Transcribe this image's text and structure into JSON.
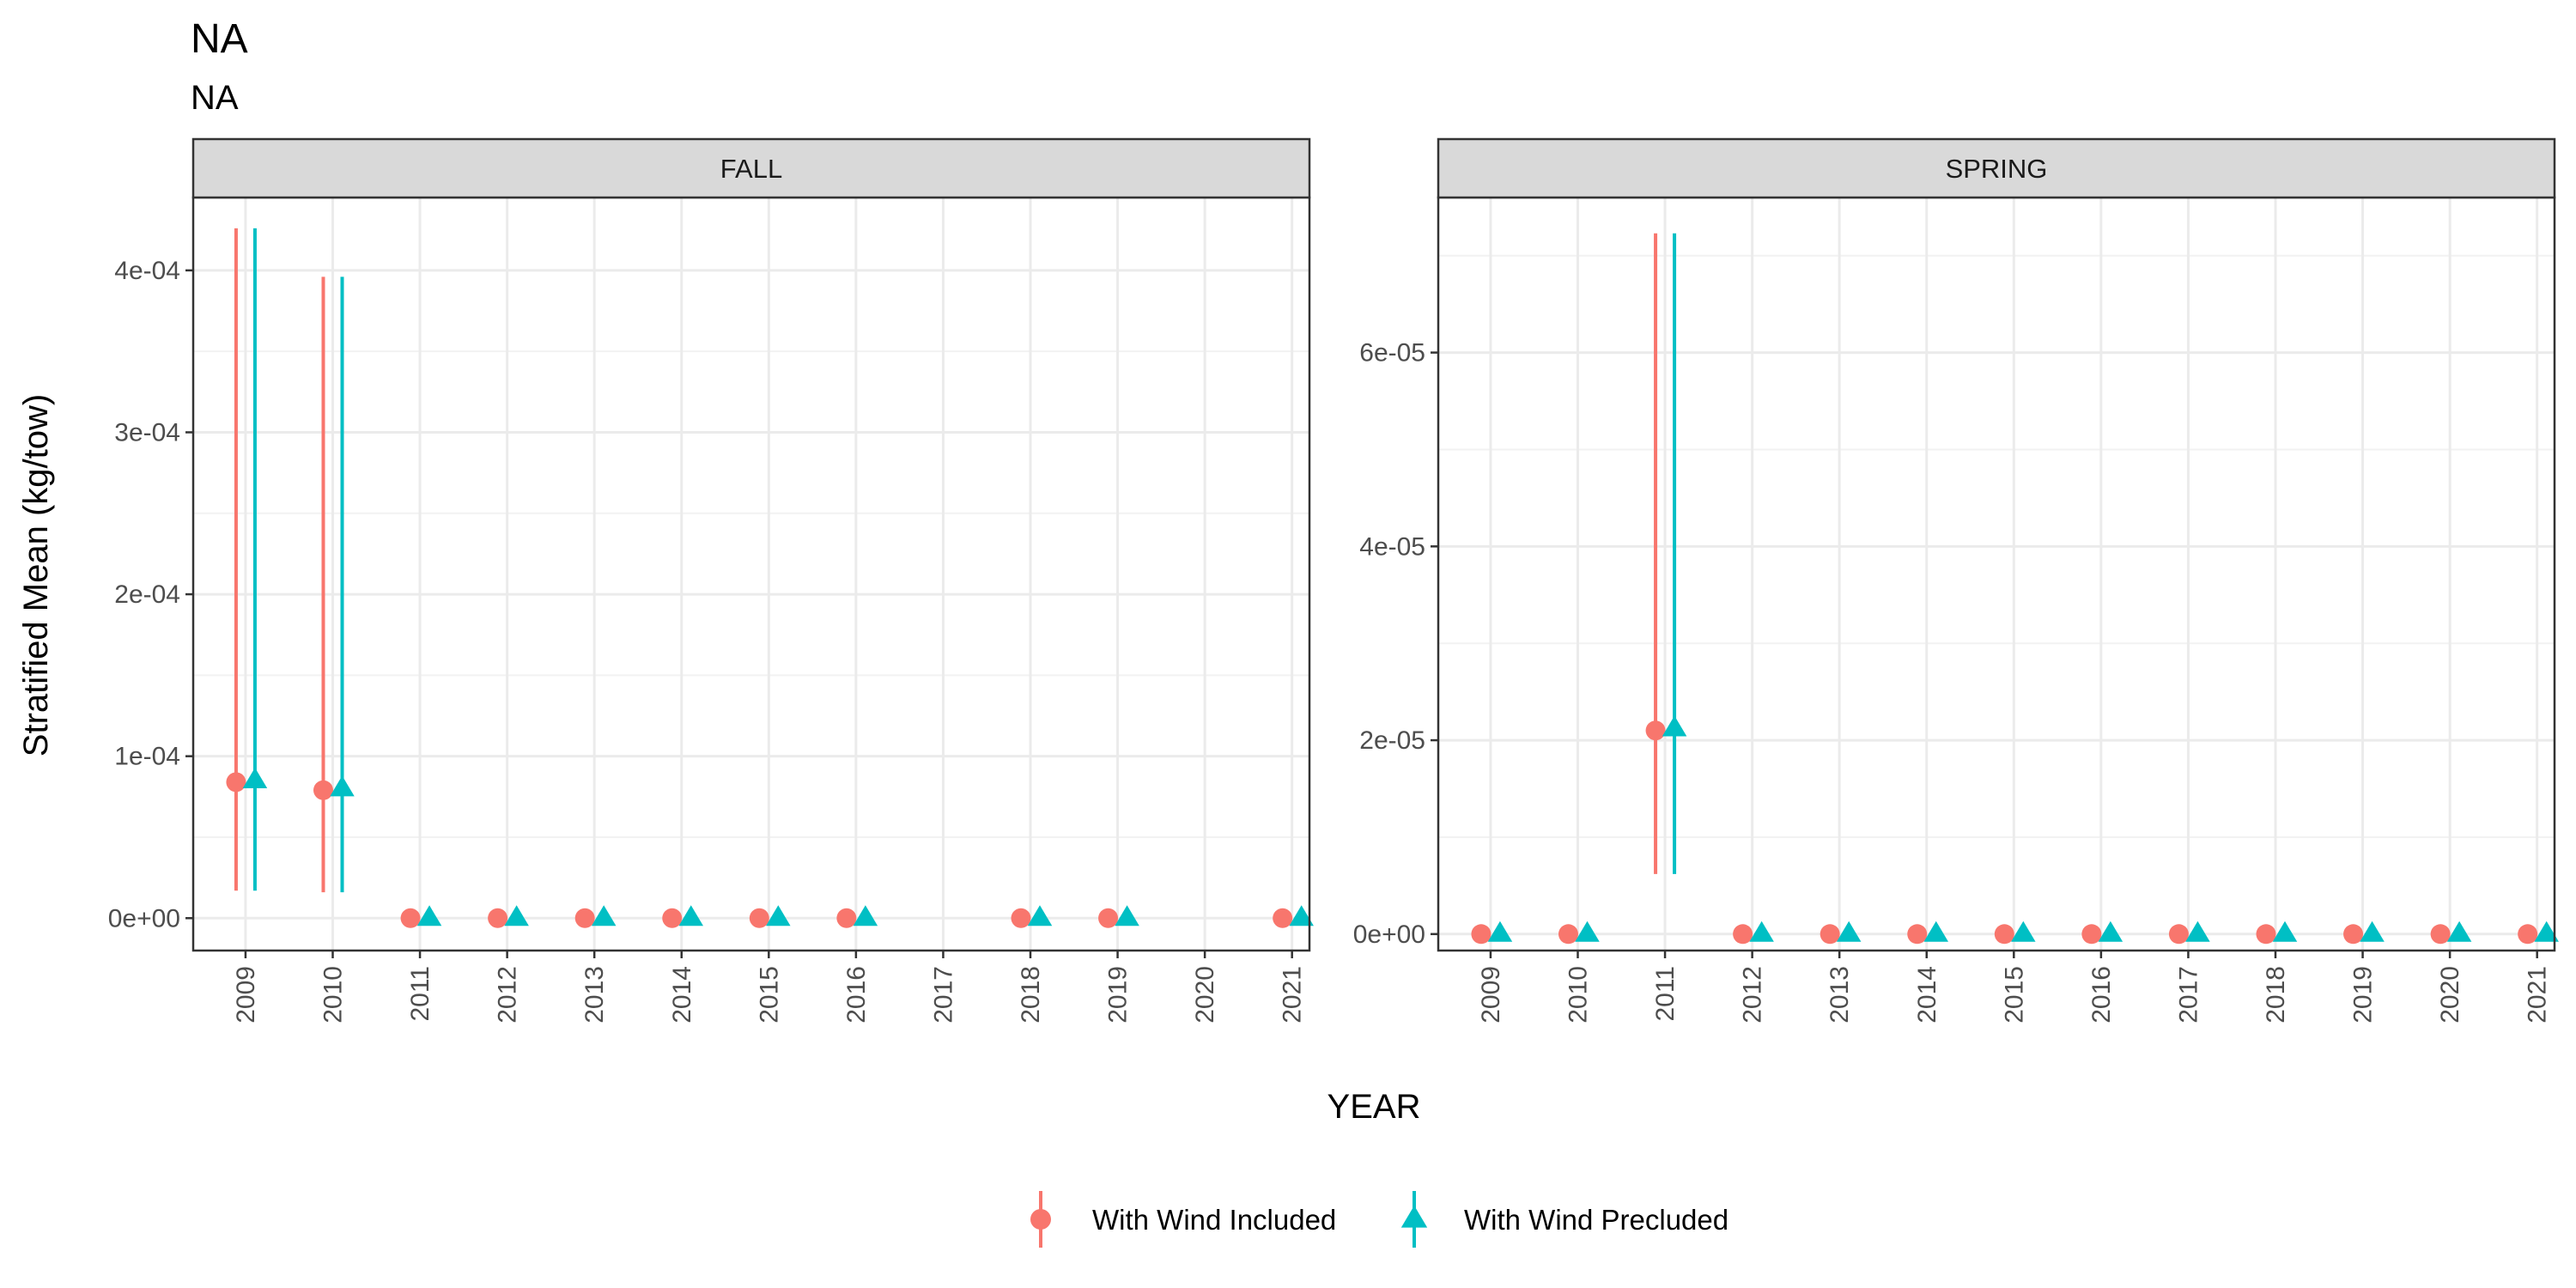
{
  "title": "NA",
  "subtitle": "NA",
  "chart_data": {
    "type": "scatter",
    "xlabel": "YEAR",
    "ylabel": "Stratified Mean (kg/tow)",
    "grid": true,
    "legend_position": "bottom",
    "series": [
      {
        "name": "With Wind Included",
        "color": "#F8766D",
        "shape": "circle"
      },
      {
        "name": "With Wind Precluded",
        "color": "#00BFC4",
        "shape": "triangle"
      }
    ],
    "panels": [
      {
        "label": "FALL",
        "x": [
          "2009",
          "2010",
          "2011",
          "2012",
          "2013",
          "2014",
          "2015",
          "2016",
          "2017",
          "2018",
          "2019",
          "2020",
          "2021"
        ],
        "ylim": [
          -2e-05,
          0.000445
        ],
        "yticks": [
          0,
          0.0001,
          0.0002,
          0.0003,
          0.0004
        ],
        "ytick_labels": [
          "0e+00",
          "1e-04",
          "2e-04",
          "3e-04",
          "4e-04"
        ],
        "points": [
          {
            "year": "2009",
            "series": 0,
            "y": 8.4e-05,
            "lo": 1.7e-05,
            "hi": 0.000426
          },
          {
            "year": "2009",
            "series": 1,
            "y": 8.5e-05,
            "lo": 1.7e-05,
            "hi": 0.000426
          },
          {
            "year": "2010",
            "series": 0,
            "y": 7.9e-05,
            "lo": 1.6e-05,
            "hi": 0.000396
          },
          {
            "year": "2010",
            "series": 1,
            "y": 8e-05,
            "lo": 1.6e-05,
            "hi": 0.000396
          },
          {
            "year": "2011",
            "series": 0,
            "y": 0
          },
          {
            "year": "2011",
            "series": 1,
            "y": 0
          },
          {
            "year": "2012",
            "series": 0,
            "y": 0
          },
          {
            "year": "2012",
            "series": 1,
            "y": 0
          },
          {
            "year": "2013",
            "series": 0,
            "y": 0
          },
          {
            "year": "2013",
            "series": 1,
            "y": 0
          },
          {
            "year": "2014",
            "series": 0,
            "y": 0
          },
          {
            "year": "2014",
            "series": 1,
            "y": 0
          },
          {
            "year": "2015",
            "series": 0,
            "y": 0
          },
          {
            "year": "2015",
            "series": 1,
            "y": 0
          },
          {
            "year": "2016",
            "series": 0,
            "y": 0
          },
          {
            "year": "2016",
            "series": 1,
            "y": 0
          },
          {
            "year": "2018",
            "series": 0,
            "y": 0
          },
          {
            "year": "2018",
            "series": 1,
            "y": 0
          },
          {
            "year": "2019",
            "series": 0,
            "y": 0
          },
          {
            "year": "2019",
            "series": 1,
            "y": 0
          },
          {
            "year": "2021",
            "series": 0,
            "y": 0
          },
          {
            "year": "2021",
            "series": 1,
            "y": 0
          }
        ]
      },
      {
        "label": "SPRING",
        "x": [
          "2009",
          "2010",
          "2011",
          "2012",
          "2013",
          "2014",
          "2015",
          "2016",
          "2017",
          "2018",
          "2019",
          "2020",
          "2021"
        ],
        "ylim": [
          -1.7e-06,
          7.6e-05
        ],
        "yticks": [
          0,
          2e-05,
          4e-05,
          6e-05
        ],
        "ytick_labels": [
          "0e+00",
          "2e-05",
          "4e-05",
          "6e-05"
        ],
        "points": [
          {
            "year": "2009",
            "series": 0,
            "y": 0
          },
          {
            "year": "2009",
            "series": 1,
            "y": 0
          },
          {
            "year": "2010",
            "series": 0,
            "y": 0
          },
          {
            "year": "2010",
            "series": 1,
            "y": 0
          },
          {
            "year": "2011",
            "series": 0,
            "y": 2.1e-05,
            "lo": 6.2e-06,
            "hi": 7.23e-05
          },
          {
            "year": "2011",
            "series": 1,
            "y": 2.12e-05,
            "lo": 6.2e-06,
            "hi": 7.23e-05
          },
          {
            "year": "2012",
            "series": 0,
            "y": 0
          },
          {
            "year": "2012",
            "series": 1,
            "y": 0
          },
          {
            "year": "2013",
            "series": 0,
            "y": 0
          },
          {
            "year": "2013",
            "series": 1,
            "y": 0
          },
          {
            "year": "2014",
            "series": 0,
            "y": 0
          },
          {
            "year": "2014",
            "series": 1,
            "y": 0
          },
          {
            "year": "2015",
            "series": 0,
            "y": 0
          },
          {
            "year": "2015",
            "series": 1,
            "y": 0
          },
          {
            "year": "2016",
            "series": 0,
            "y": 0
          },
          {
            "year": "2016",
            "series": 1,
            "y": 0
          },
          {
            "year": "2017",
            "series": 0,
            "y": 0
          },
          {
            "year": "2017",
            "series": 1,
            "y": 0
          },
          {
            "year": "2018",
            "series": 0,
            "y": 0
          },
          {
            "year": "2018",
            "series": 1,
            "y": 0
          },
          {
            "year": "2019",
            "series": 0,
            "y": 0
          },
          {
            "year": "2019",
            "series": 1,
            "y": 0
          },
          {
            "year": "2020",
            "series": 0,
            "y": 0
          },
          {
            "year": "2020",
            "series": 1,
            "y": 0
          },
          {
            "year": "2021",
            "series": 0,
            "y": 0
          },
          {
            "year": "2021",
            "series": 1,
            "y": 0
          }
        ]
      }
    ]
  }
}
